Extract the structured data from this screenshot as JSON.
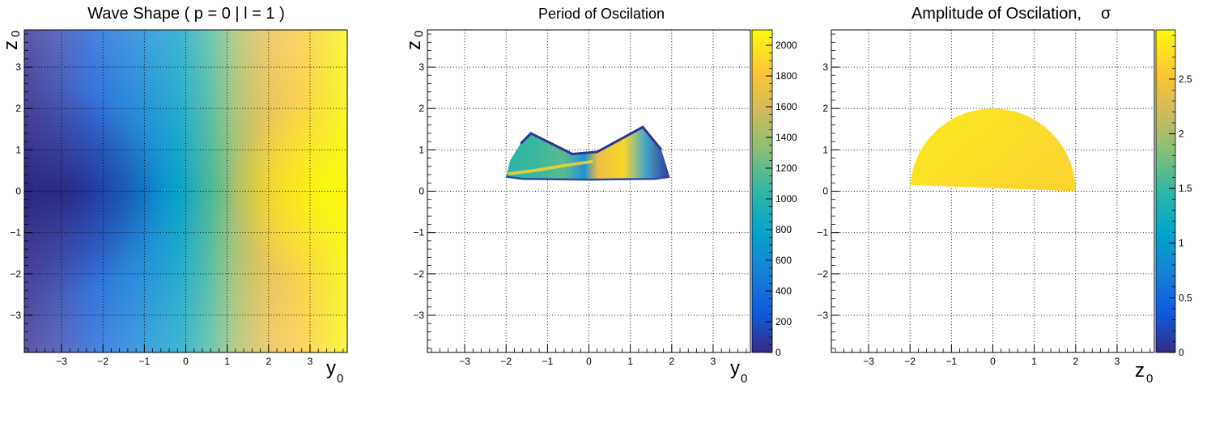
{
  "chart_data": [
    {
      "type": "heatmap",
      "title": "Wave Shape ( p = 0 | l = 1 )",
      "xlabel": "y",
      "xlabel_sub": "0",
      "ylabel": "z",
      "ylabel_sub": "0",
      "xlim": [
        -3.9,
        3.9
      ],
      "ylim": [
        -3.9,
        3.9
      ],
      "xticks": [
        -3,
        -2,
        -1,
        0,
        1,
        2,
        3
      ],
      "yticks": [
        -3,
        -2,
        -1,
        0,
        1,
        2,
        3
      ],
      "xtick_labels": [
        "−3",
        "−2",
        "−1",
        "0",
        "1",
        "2",
        "3"
      ],
      "ytick_labels": [
        "−3",
        "−2",
        "−1",
        "0",
        "1",
        "2",
        "3"
      ],
      "grid": true,
      "colorbar": false,
      "field": "monotonic increase in y with a low near y = -3.3, z = 0 and a high near y = 3.3, z = 0"
    },
    {
      "type": "heatmap",
      "title": "Period of Oscilation",
      "xlabel": "y",
      "xlabel_sub": "0",
      "ylabel": "z",
      "ylabel_sub": "0",
      "xlim": [
        -3.9,
        3.9
      ],
      "ylim": [
        -3.9,
        3.9
      ],
      "xticks": [
        -3,
        -2,
        -1,
        0,
        1,
        2,
        3
      ],
      "yticks": [
        -3,
        -2,
        -1,
        0,
        1,
        2,
        3
      ],
      "xtick_labels": [
        "−3",
        "−2",
        "−1",
        "0",
        "1",
        "2",
        "3"
      ],
      "ytick_labels": [
        "−3",
        "−2",
        "−1",
        "0",
        "1",
        "2",
        "3"
      ],
      "grid": true,
      "colorbar": true,
      "zlim": [
        0,
        2100
      ],
      "zticks": [
        0,
        200,
        400,
        600,
        800,
        1000,
        1200,
        1400,
        1600,
        1800,
        2000
      ],
      "ztick_labels": [
        "0",
        "200",
        "400",
        "600",
        "800",
        "1000",
        "1200",
        "1400",
        "1600",
        "1800",
        "2000"
      ],
      "region": "filled band between z = 0.3 and z = 1.5, y from -2 to 2",
      "outline": [
        [
          -2.0,
          0.35
        ],
        [
          -1.9,
          0.75
        ],
        [
          -1.65,
          1.15
        ],
        [
          -1.4,
          1.4
        ],
        [
          -0.4,
          0.9
        ],
        [
          0.2,
          0.95
        ],
        [
          1.3,
          1.55
        ],
        [
          1.75,
          1.0
        ],
        [
          1.95,
          0.35
        ],
        [
          1.6,
          0.3
        ],
        [
          0.0,
          0.28
        ],
        [
          -1.6,
          0.3
        ]
      ]
    },
    {
      "type": "heatmap",
      "title": "Amplitude of Oscilation,",
      "title_symbol": "σ",
      "xlabel": "z",
      "xlabel_sub": "0",
      "ylabel": "",
      "xlim": [
        -3.9,
        3.9
      ],
      "ylim": [
        -3.9,
        3.9
      ],
      "xticks": [
        -3,
        -2,
        -1,
        0,
        1,
        2,
        3
      ],
      "yticks": [
        -3,
        -2,
        -1,
        0,
        1,
        2,
        3
      ],
      "xtick_labels": [
        "−3",
        "−2",
        "−1",
        "0",
        "1",
        "2",
        "3"
      ],
      "ytick_labels": [
        "−3",
        "−2",
        "−1",
        "0",
        "1",
        "2",
        "3"
      ],
      "grid": true,
      "colorbar": true,
      "zlim": [
        0,
        2.95
      ],
      "zticks": [
        0,
        0.5,
        1,
        1.5,
        2,
        2.5
      ],
      "ztick_labels": [
        "0",
        "0.5",
        "1",
        "1.5",
        "2",
        "2.5"
      ],
      "region": "half-disc of radius 2 centred at origin, z ≥ 0",
      "values_approx": [
        2.7,
        2.9
      ]
    }
  ],
  "colors": {
    "palette": [
      "#352a87",
      "#0f5cdd",
      "#1481d6",
      "#06a4ca",
      "#2eb7a4",
      "#87bf77",
      "#d1bb59",
      "#fec832",
      "#f9fb0e"
    ],
    "grid": "#000000",
    "axes": "#000000"
  }
}
